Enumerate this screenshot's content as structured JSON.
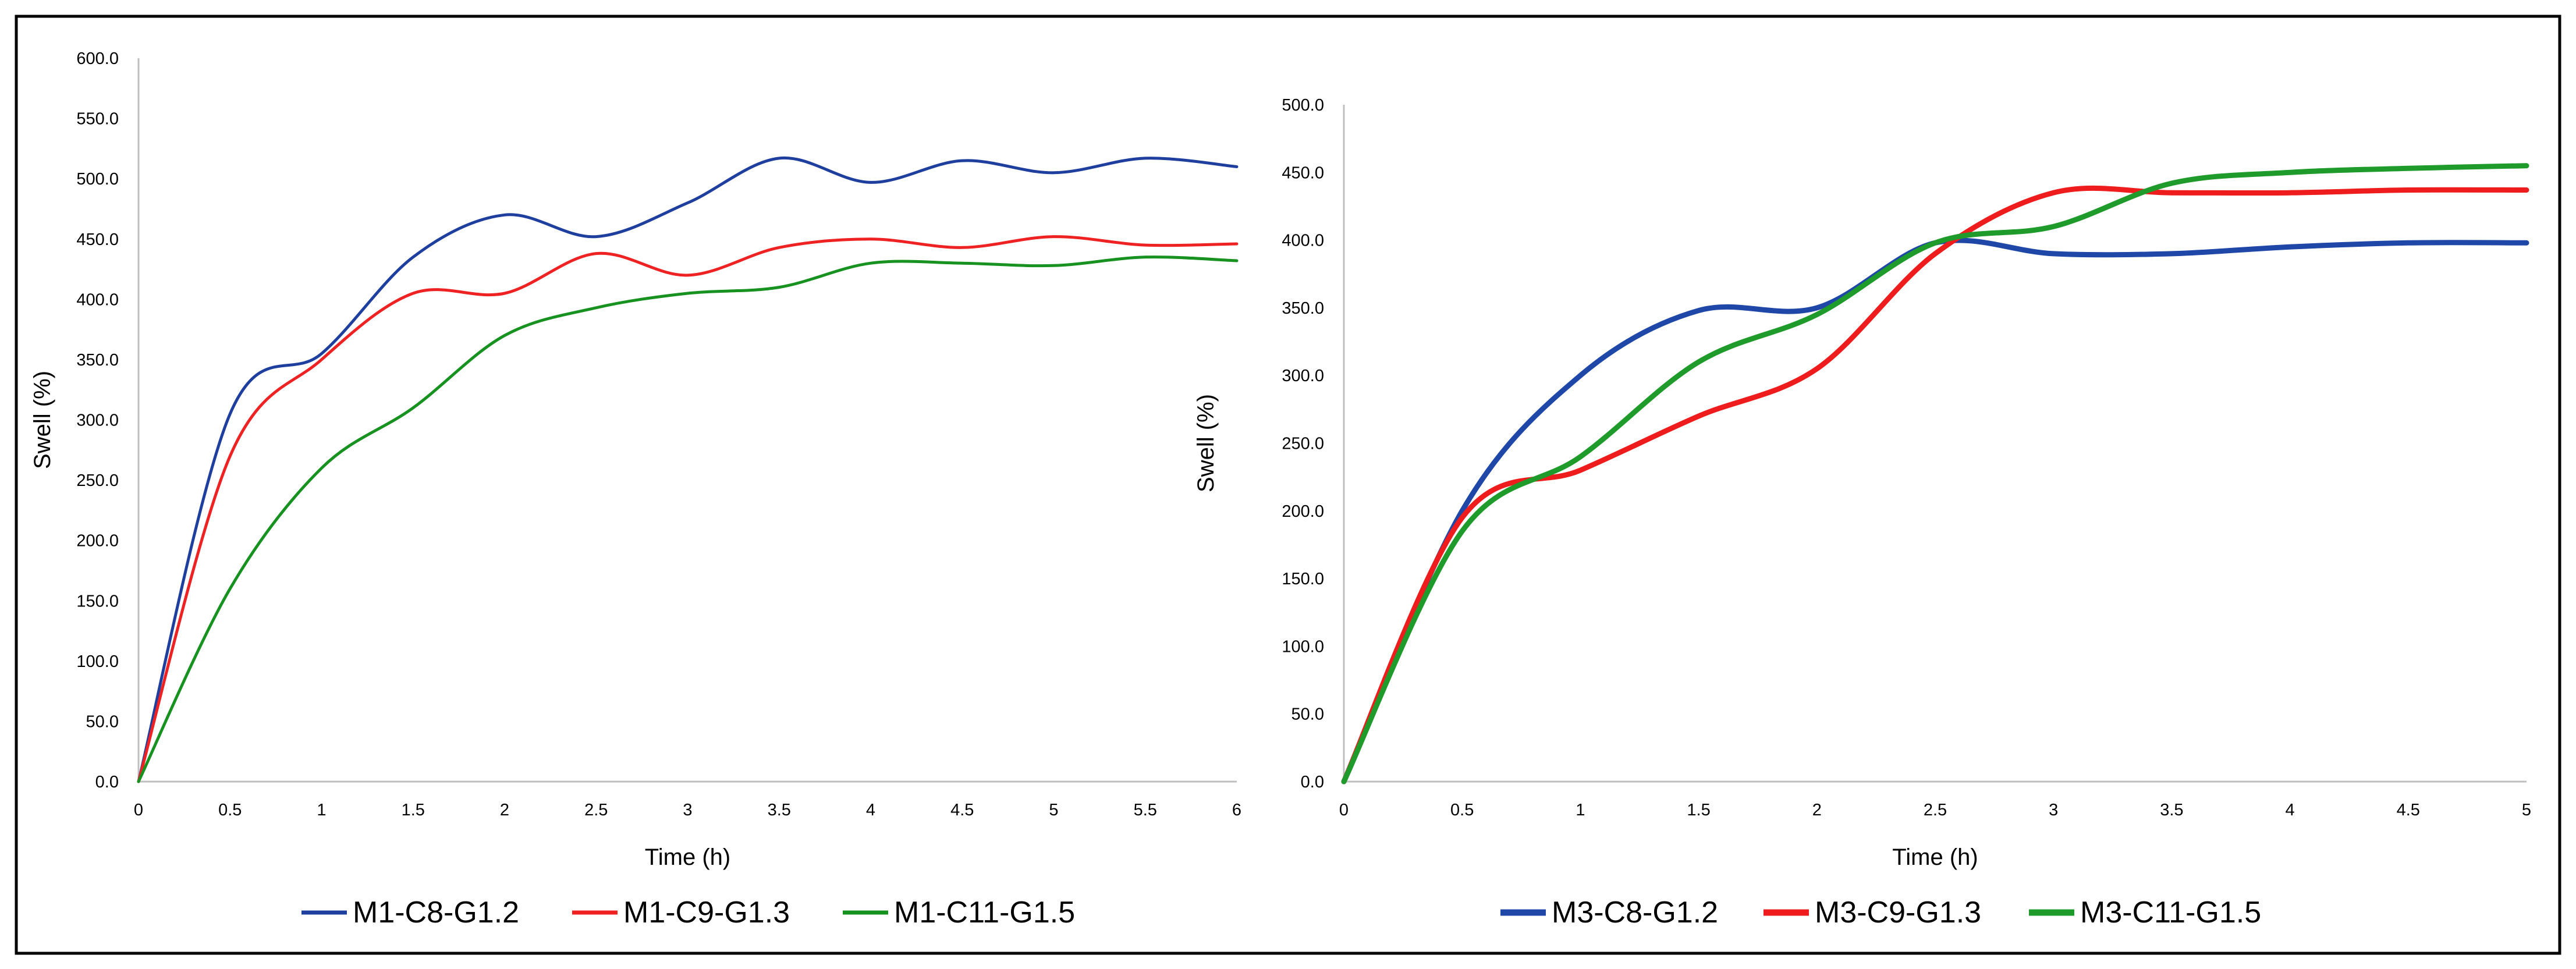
{
  "chart_data": [
    {
      "type": "line",
      "title": "",
      "xlabel": "Time (h)",
      "ylabel": "Swell (%)",
      "xlim": [
        0,
        6
      ],
      "ylim": [
        0,
        600
      ],
      "x_ticks": [
        "0",
        "0.5",
        "1",
        "1.5",
        "2",
        "2.5",
        "3",
        "3.5",
        "4",
        "4.5",
        "5",
        "5.5",
        "6"
      ],
      "y_ticks": [
        "0.0",
        "50.0",
        "100.0",
        "150.0",
        "200.0",
        "250.0",
        "300.0",
        "350.0",
        "400.0",
        "450.0",
        "500.0",
        "550.0",
        "600.0"
      ],
      "grid": false,
      "legend_position": "bottom",
      "x": [
        0,
        0.5,
        1,
        1.5,
        2,
        2.5,
        3,
        3.5,
        4,
        4.5,
        5,
        5.5,
        6
      ],
      "series": [
        {
          "name": "M1-C8-G1.2",
          "color": "#1f3f9e",
          "values": [
            0,
            305,
            355,
            435,
            470,
            452,
            480,
            517,
            497,
            515,
            505,
            517,
            510
          ]
        },
        {
          "name": "M1-C9-G1.3",
          "color": "#ee2222",
          "values": [
            0,
            270,
            350,
            405,
            405,
            438,
            420,
            443,
            450,
            443,
            452,
            445,
            446
          ]
        },
        {
          "name": "M1-C11-G1.5",
          "color": "#17911f",
          "values": [
            0,
            160,
            260,
            310,
            370,
            393,
            405,
            410,
            430,
            430,
            428,
            435,
            432
          ]
        }
      ]
    },
    {
      "type": "line",
      "title": "",
      "xlabel": "Time (h)",
      "ylabel": "Swell (%)",
      "xlim": [
        0,
        5
      ],
      "ylim": [
        0,
        500
      ],
      "x_ticks": [
        "0",
        "0.5",
        "1",
        "1.5",
        "2",
        "2.5",
        "3",
        "3.5",
        "4",
        "4.5",
        "5"
      ],
      "y_ticks": [
        "0.0",
        "50.0",
        "100.0",
        "150.0",
        "200.0",
        "250.0",
        "300.0",
        "350.0",
        "400.0",
        "450.0",
        "500.0"
      ],
      "grid": false,
      "legend_position": "bottom",
      "x": [
        0,
        0.5,
        1,
        1.5,
        2,
        2.5,
        3,
        3.5,
        4,
        4.5,
        5
      ],
      "series": [
        {
          "name": "M3-C8-G1.2",
          "color": "#1f47a8",
          "values": [
            0,
            200,
            300,
            348,
            350,
            398,
            390,
            390,
            395,
            398,
            398
          ]
        },
        {
          "name": "M3-C9-G1.3",
          "color": "#ee1c1c",
          "values": [
            0,
            195,
            230,
            270,
            305,
            390,
            435,
            435,
            435,
            437,
            437
          ]
        },
        {
          "name": "M3-C11-G1.5",
          "color": "#1e9b2a",
          "values": [
            0,
            185,
            240,
            310,
            345,
            398,
            410,
            442,
            450,
            453,
            455
          ]
        }
      ]
    }
  ]
}
